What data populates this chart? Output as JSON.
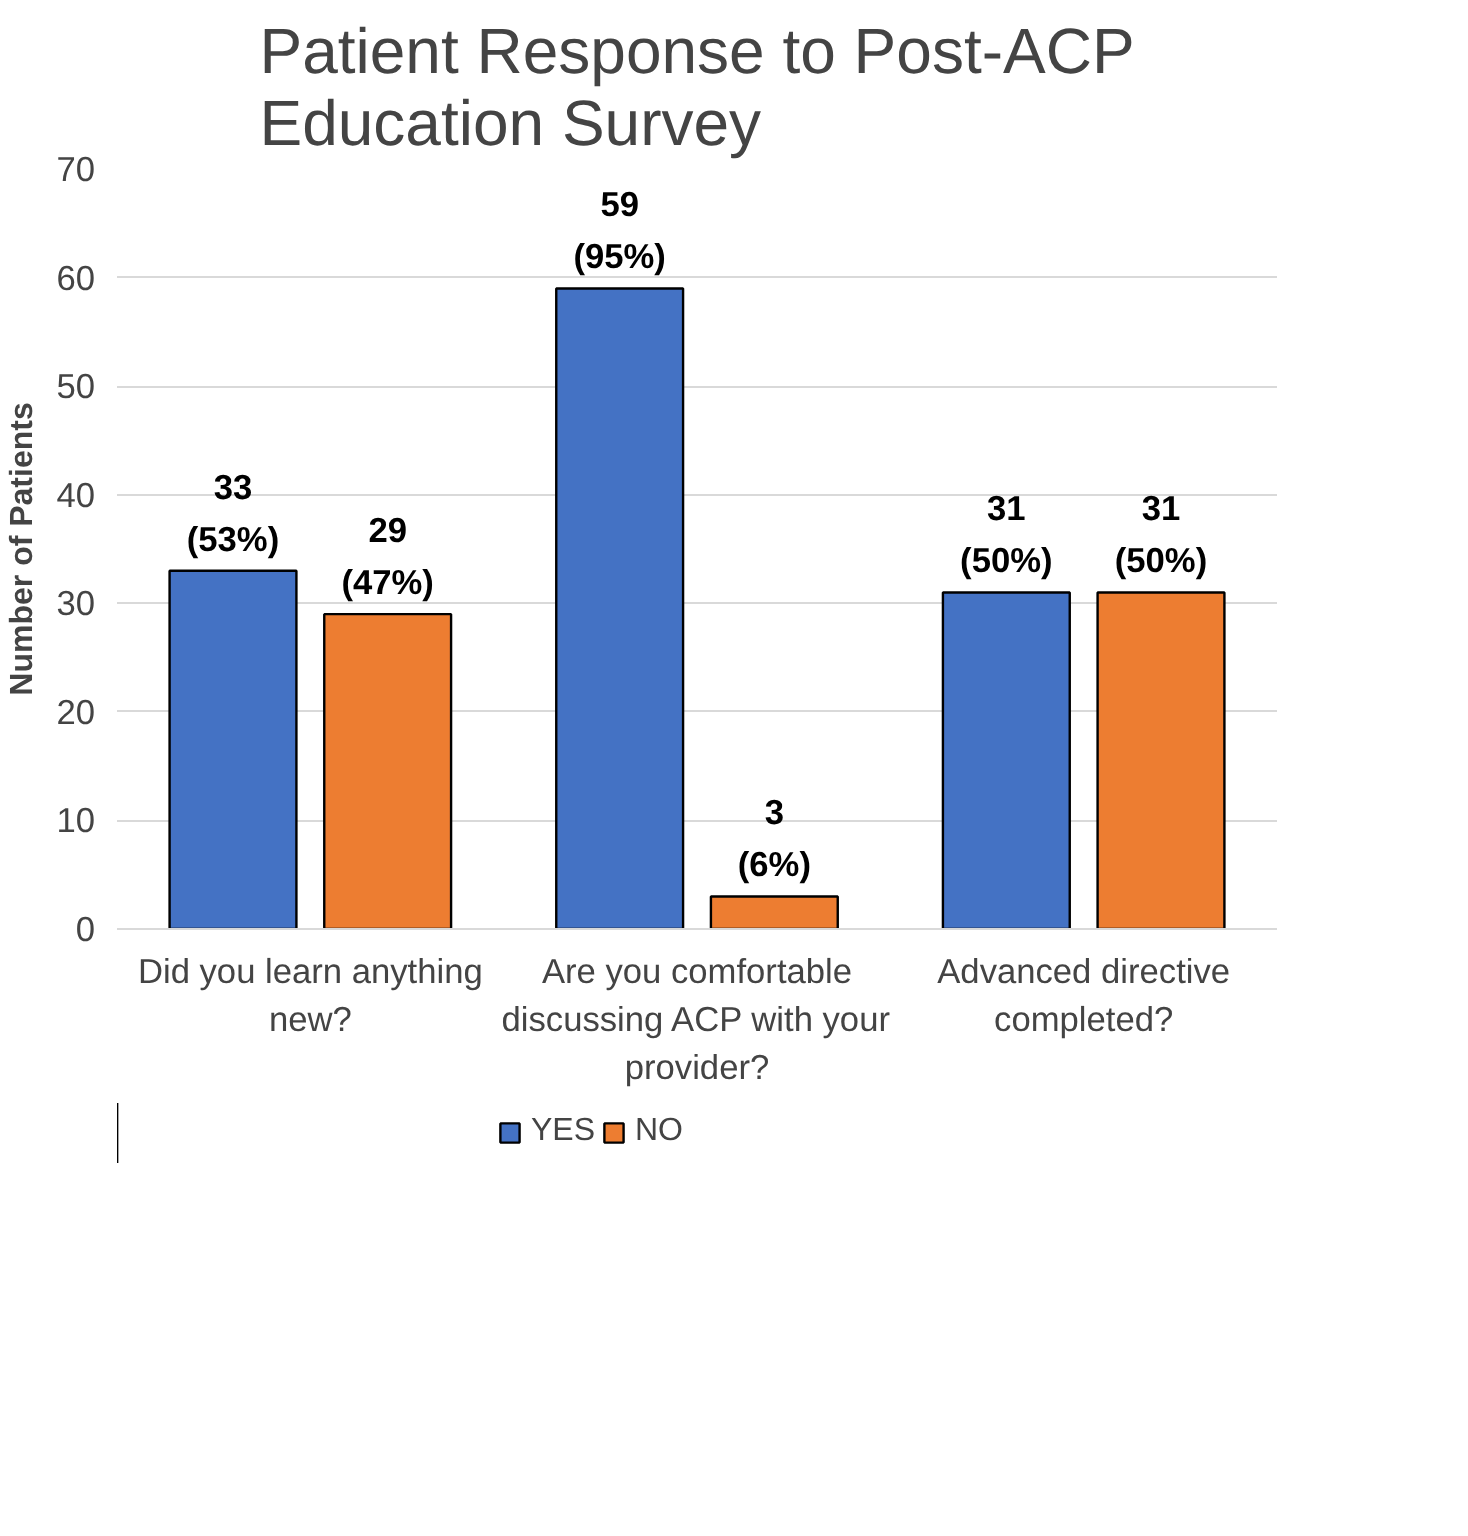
{
  "chart_data": {
    "type": "bar",
    "title": "Patient Response to Post-ACP Education Survey",
    "ylabel": "Number of Patients",
    "categories": [
      "Did you learn anything new?",
      "Are you comfortable discussing ACP with your provider?",
      "Advanced directive completed?"
    ],
    "series": [
      {
        "name": "YES",
        "color": "#4472c4",
        "values": [
          33,
          59,
          31
        ],
        "value_labels": [
          "33\n(53%)",
          "59\n(95%)",
          "31\n(50%)"
        ]
      },
      {
        "name": "NO",
        "color": "#ed7d31",
        "values": [
          29,
          3,
          31
        ],
        "value_labels": [
          "29\n(47%)",
          "3\n(6%)",
          "31\n(50%)"
        ]
      }
    ],
    "ylim": [
      0,
      70
    ],
    "yticks": [
      0,
      10,
      20,
      30,
      40,
      50,
      60,
      70
    ],
    "grid": "y",
    "legend": "bottom"
  }
}
